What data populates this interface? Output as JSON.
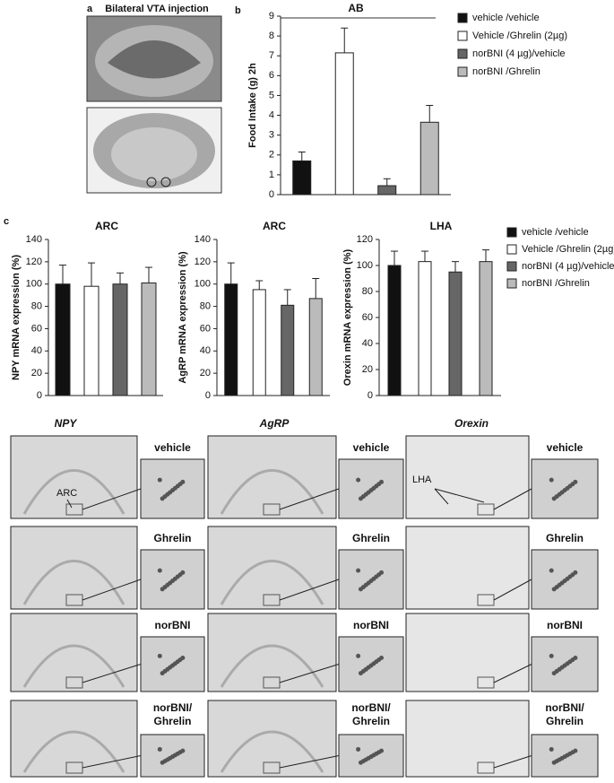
{
  "panel_labels": [
    "a",
    "b",
    "c"
  ],
  "panel_a_title": "Bilateral VTA injection",
  "chart_data": [
    {
      "type": "bar",
      "title": "AB",
      "ylabel": "Food Intake (g) 2h",
      "categories": [
        null
      ],
      "ylim": [
        0,
        9
      ],
      "yticks": [
        0,
        1,
        2,
        3,
        4,
        5,
        6,
        7,
        8,
        9
      ],
      "legend": true,
      "series": [
        {
          "name": "vehicle /vehicle",
          "color": "#111111",
          "values": [
            1.7
          ],
          "errors": [
            0.45
          ]
        },
        {
          "name": "Vehicle /Ghrelin (2µg)",
          "color": "#ffffff",
          "values": [
            7.15
          ],
          "errors": [
            1.25
          ]
        },
        {
          "name": "norBNI (4 µg)/vehicle",
          "color": "#666666",
          "values": [
            0.45
          ],
          "errors": [
            0.35
          ]
        },
        {
          "name": "norBNI /Ghrelin",
          "color": "#bbbbbb",
          "values": [
            3.65
          ],
          "errors": [
            0.85
          ]
        }
      ]
    },
    {
      "type": "bar",
      "title": "ARC",
      "ylabel": "NPY mRNA expression (%)",
      "categories": [
        null
      ],
      "ylim": [
        0,
        140
      ],
      "yticks": [
        0,
        20,
        40,
        60,
        80,
        100,
        120,
        140
      ],
      "legend": false,
      "series": [
        {
          "name": "vehicle /vehicle",
          "color": "#111111",
          "values": [
            100
          ],
          "errors": [
            17
          ]
        },
        {
          "name": "Vehicle /Ghrelin (2µg)",
          "color": "#ffffff",
          "values": [
            98
          ],
          "errors": [
            21
          ]
        },
        {
          "name": "norBNI (4 µg)/vehicle",
          "color": "#666666",
          "values": [
            100
          ],
          "errors": [
            10
          ]
        },
        {
          "name": "norBNI /Ghrelin",
          "color": "#bbbbbb",
          "values": [
            101
          ],
          "errors": [
            14
          ]
        }
      ]
    },
    {
      "type": "bar",
      "title": "ARC",
      "ylabel": "AgRP mRNA expression (%)",
      "categories": [
        null
      ],
      "ylim": [
        0,
        140
      ],
      "yticks": [
        0,
        20,
        40,
        60,
        80,
        100,
        120,
        140
      ],
      "legend": false,
      "series": [
        {
          "name": "vehicle /vehicle",
          "color": "#111111",
          "values": [
            100
          ],
          "errors": [
            19
          ]
        },
        {
          "name": "Vehicle /Ghrelin (2µg)",
          "color": "#ffffff",
          "values": [
            95
          ],
          "errors": [
            8
          ]
        },
        {
          "name": "norBNI (4 µg)/vehicle",
          "color": "#666666",
          "values": [
            81
          ],
          "errors": [
            14
          ]
        },
        {
          "name": "norBNI /Ghrelin",
          "color": "#bbbbbb",
          "values": [
            87
          ],
          "errors": [
            18
          ]
        }
      ]
    },
    {
      "type": "bar",
      "title": "LHA",
      "ylabel": "Orexin mRNA expression (%)",
      "categories": [
        null
      ],
      "ylim": [
        0,
        120
      ],
      "yticks": [
        0,
        20,
        40,
        60,
        80,
        100,
        120
      ],
      "legend": true,
      "series": [
        {
          "name": "vehicle /vehicle",
          "color": "#111111",
          "values": [
            100
          ],
          "errors": [
            11
          ]
        },
        {
          "name": "Vehicle /Ghrelin (2µg)",
          "color": "#ffffff",
          "values": [
            103
          ],
          "errors": [
            8
          ]
        },
        {
          "name": "norBNI (4 µg)/vehicle",
          "color": "#666666",
          "values": [
            95
          ],
          "errors": [
            8
          ]
        },
        {
          "name": "norBNI /Ghrelin",
          "color": "#bbbbbb",
          "values": [
            103
          ],
          "errors": [
            9
          ]
        }
      ]
    }
  ],
  "histology": {
    "columns": [
      "NPY",
      "AgRP",
      "Orexin"
    ],
    "rows": [
      "vehicle",
      "Ghrelin",
      "norBNI",
      [
        "norBNI/",
        "Ghrelin"
      ]
    ],
    "annotations": {
      "arc": "ARC",
      "lha": "LHA"
    }
  }
}
